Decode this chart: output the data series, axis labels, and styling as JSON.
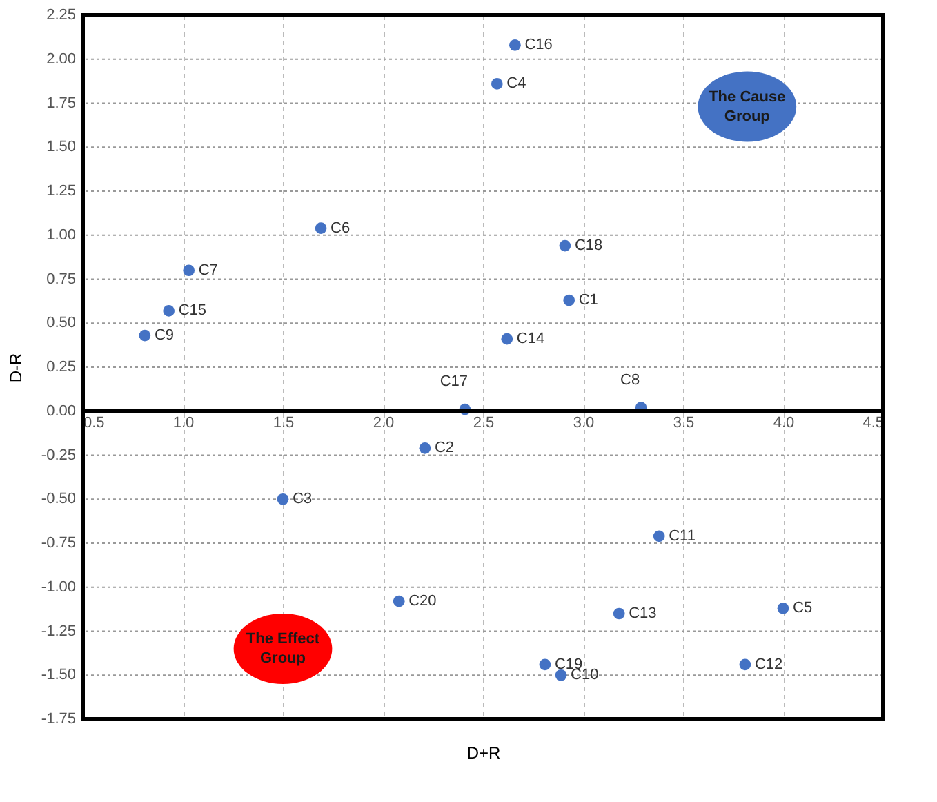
{
  "chart_data": {
    "type": "scatter",
    "xlabel": "D+R",
    "ylabel": "D-R",
    "x": [
      2.93,
      2.21,
      1.5,
      2.57,
      4.0,
      1.69,
      1.03,
      3.29,
      0.81,
      2.89,
      3.38,
      3.81,
      3.18,
      2.62,
      0.93,
      2.66,
      2.41,
      2.91,
      2.81,
      2.08
    ],
    "values": [
      0.63,
      -0.21,
      -0.5,
      1.86,
      -1.12,
      1.04,
      0.8,
      0.02,
      0.43,
      -1.5,
      -0.71,
      -1.44,
      -1.15,
      0.41,
      0.57,
      2.08,
      0.01,
      0.94,
      -1.44,
      -1.08
    ],
    "value_labels": [
      "C1",
      "C2",
      "C3",
      "C4",
      "C5",
      "C6",
      "C7",
      "C8",
      "C9",
      "C10",
      "C11",
      "C12",
      "C13",
      "C14",
      "C15",
      "C16",
      "C17",
      "C18",
      "C19",
      "C20"
    ],
    "color": "#4472c4",
    "marker": "circle",
    "xlim": [
      0.5,
      4.5
    ],
    "xticks": [
      {
        "value": 0.5,
        "label": "0.5"
      },
      {
        "value": 1,
        "label": "1.0"
      },
      {
        "value": 1.5,
        "label": "1.5"
      },
      {
        "value": 2,
        "label": "2.0"
      },
      {
        "value": 2.5,
        "label": "2.5"
      },
      {
        "value": 3,
        "label": "3.0"
      },
      {
        "value": 3.5,
        "label": "3.5"
      },
      {
        "value": 4,
        "label": "4.0"
      },
      {
        "value": 4.5,
        "label": "4.5"
      }
    ],
    "ylim": [
      -1.75,
      2.25
    ],
    "yticks": [
      {
        "value": -1.75,
        "label": "-1.75"
      },
      {
        "value": -1.5,
        "label": "-1.50"
      },
      {
        "value": -1.25,
        "label": "-1.25"
      },
      {
        "value": -1,
        "label": "-1.00"
      },
      {
        "value": -0.75,
        "label": "-0.75"
      },
      {
        "value": -0.5,
        "label": "-0.50"
      },
      {
        "value": -0.25,
        "label": "-0.25"
      },
      {
        "value": 0,
        "label": "0.00"
      },
      {
        "value": 0.25,
        "label": "0.25"
      },
      {
        "value": 0.5,
        "label": "0.50"
      },
      {
        "value": 0.75,
        "label": "0.75"
      },
      {
        "value": 1,
        "label": "1.00"
      },
      {
        "value": 1.25,
        "label": "1.25"
      },
      {
        "value": 1.5,
        "label": "1.50"
      },
      {
        "value": 1.75,
        "label": "1.75"
      },
      {
        "value": 2,
        "label": "2.00"
      },
      {
        "value": 2.25,
        "label": "2.25"
      }
    ],
    "grid": true,
    "annotations": [
      "The Cause Group",
      "The Effect Group"
    ]
  }
}
